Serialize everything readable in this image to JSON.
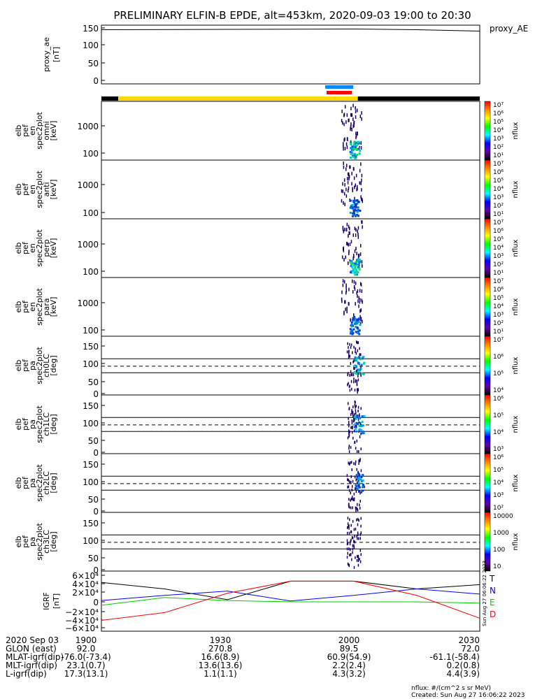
{
  "title": "PRELIMINARY ELFIN-B EPDE, alt=453km, 2020-09-03 19:00 to 20:30",
  "panels": [
    {
      "id": "proxy",
      "ylabel": [
        "proxy_ae",
        "[nT]"
      ],
      "ticks": [
        "150",
        "100",
        "50",
        "0"
      ],
      "legend": "proxy_AE"
    },
    {
      "id": "omni",
      "ylabel": [
        "elb",
        "pef",
        "en",
        "spec2plot",
        "omni",
        "[keV]"
      ],
      "ticks": [
        "1000",
        "100"
      ]
    },
    {
      "id": "anti",
      "ylabel": [
        "elb",
        "pef",
        "en",
        "spec2plot",
        "anti",
        "[keV]"
      ],
      "ticks": [
        "1000",
        "100"
      ]
    },
    {
      "id": "perp",
      "ylabel": [
        "elb",
        "pef",
        "en",
        "spec2plot",
        "perp",
        "[keV]"
      ],
      "ticks": [
        "1000",
        "100"
      ]
    },
    {
      "id": "para",
      "ylabel": [
        "elb",
        "pef",
        "en",
        "spec2plot",
        "para",
        "[keV]"
      ],
      "ticks": [
        "1000",
        "100"
      ]
    },
    {
      "id": "ch0LC",
      "ylabel": [
        "elb",
        "pef",
        "pa",
        "spec2plot",
        "ch0LC",
        "[deg]"
      ],
      "ticks": [
        "150",
        "100",
        "50",
        "0"
      ]
    },
    {
      "id": "ch1LC",
      "ylabel": [
        "elb",
        "pef",
        "pa",
        "spec2plot",
        "ch1LC",
        "[deg]"
      ],
      "ticks": [
        "150",
        "100",
        "50",
        "0"
      ]
    },
    {
      "id": "ch2LC",
      "ylabel": [
        "elb",
        "pef",
        "pa",
        "spec2plot",
        "ch2LC",
        "[deg]"
      ],
      "ticks": [
        "150",
        "100",
        "50",
        "0"
      ]
    },
    {
      "id": "ch3LC",
      "ylabel": [
        "elb",
        "pef",
        "pa",
        "spec2plot",
        "ch3LC",
        "[deg]"
      ],
      "ticks": [
        "150",
        "100",
        "50",
        "0"
      ]
    },
    {
      "id": "igrf",
      "ylabel": [
        "IGRF",
        "[nT]"
      ],
      "ticks": [
        "6×10⁴",
        "4×10⁴",
        "2×10⁴",
        "0",
        "−2×10⁴",
        "−4×10⁴",
        "−6×10⁴"
      ]
    }
  ],
  "colorbars": [
    {
      "panel": "omni",
      "labels": [
        "10⁷",
        "10⁶",
        "10⁵",
        "10⁴",
        "10³",
        "10²",
        "10¹"
      ],
      "unit": "nflux"
    },
    {
      "panel": "anti",
      "labels": [
        "10⁷",
        "10⁶",
        "10⁵",
        "10⁴",
        "10³",
        "10²",
        "10¹"
      ],
      "unit": "nflux"
    },
    {
      "panel": "perp",
      "labels": [
        "10⁷",
        "10⁶",
        "10⁵",
        "10⁴",
        "10³",
        "10²",
        "10¹"
      ],
      "unit": "nflux"
    },
    {
      "panel": "para",
      "labels": [
        "10⁷",
        "10⁶",
        "10⁵",
        "10⁴",
        "10³",
        "10²",
        "10¹"
      ],
      "unit": "nflux"
    },
    {
      "panel": "ch0LC",
      "labels": [
        "10⁷",
        "10⁶",
        "10⁵",
        "10⁴"
      ],
      "unit": "nflux"
    },
    {
      "panel": "ch1LC",
      "labels": [
        "10⁶",
        "10⁵",
        "10⁴",
        "10³"
      ],
      "unit": "nflux"
    },
    {
      "panel": "ch2LC",
      "labels": [
        "10⁶",
        "10⁵",
        "10⁴",
        "10³",
        "10²"
      ],
      "unit": "nflux"
    },
    {
      "panel": "ch3LC",
      "labels": [
        "10000",
        "1000",
        "100",
        "10"
      ],
      "unit": "nflux"
    }
  ],
  "igrf_legend": [
    "T",
    "N",
    "E",
    "D"
  ],
  "colors": {
    "T": "#000000",
    "N": "#0000ff",
    "E": "#00cc00",
    "D": "#ff0000",
    "sunlit": "#ffd800",
    "shadow": "#000000",
    "flag_blue": "#0088ff",
    "flag_red": "#ff0000"
  },
  "stamp_vertical": "Sun Aug 27 06:06:22 2023",
  "bottom_table": {
    "time_header": [
      "1900",
      "1930",
      "2000",
      "2030"
    ],
    "rows": [
      {
        "label": "2020 Sep 03",
        "values": [
          "",
          "",
          "",
          ""
        ]
      },
      {
        "label": "GLON (east)",
        "values": [
          "92.0",
          "270.8",
          "89.5",
          "72.0"
        ]
      },
      {
        "label": "MLAT-igrf(dip)",
        "values": [
          "-76.0(-73.4)",
          "16.6(8.9)",
          "60.9(54.9)",
          "-61.1(-58.4)"
        ]
      },
      {
        "label": "MLT-igrf(dip)",
        "values": [
          "23.1(0.7)",
          "13.6(13.6)",
          "2.2(2.4)",
          "0.2(0.8)"
        ]
      },
      {
        "label": "L-igrf(dip)",
        "values": [
          "17.3(13.1)",
          "1.1(1.1)",
          "4.3(3.2)",
          "4.4(3.9)"
        ]
      }
    ]
  },
  "footer": [
    "nflux: #/(cm^2 s sr MeV)",
    "Created: Sun Aug 27 16:06:22 2023"
  ],
  "chart_data": {
    "type": "line",
    "time_range": [
      "19:00",
      "20:30"
    ],
    "series": [
      {
        "name": "proxy_AE",
        "x": [
          "19:00",
          "19:30",
          "20:00",
          "20:15",
          "20:30"
        ],
        "y": [
          145,
          146,
          147,
          145,
          141
        ]
      },
      {
        "name": "T",
        "x": [
          "19:00",
          "19:15",
          "19:30",
          "19:45",
          "20:00",
          "20:15",
          "20:30"
        ],
        "y": [
          45000,
          30000,
          5000,
          48000,
          48000,
          30000,
          40000
        ]
      },
      {
        "name": "N",
        "x": [
          "19:00",
          "19:15",
          "19:30",
          "19:45",
          "20:00",
          "20:15",
          "20:30"
        ],
        "y": [
          3000,
          15000,
          25000,
          2000,
          15000,
          30000,
          18000
        ]
      },
      {
        "name": "E",
        "x": [
          "19:00",
          "19:15",
          "19:30",
          "19:45",
          "20:00",
          "20:15",
          "20:30"
        ],
        "y": [
          -8000,
          10000,
          3000,
          0,
          0,
          0,
          -3000
        ]
      },
      {
        "name": "D",
        "x": [
          "19:00",
          "19:15",
          "19:30",
          "19:45",
          "20:00",
          "20:15",
          "20:30"
        ],
        "y": [
          -43000,
          -25000,
          20000,
          48000,
          48000,
          15000,
          -38000
        ]
      }
    ],
    "spectrogram": {
      "active_time": [
        "19:57",
        "20:02"
      ],
      "energy_range_keV": [
        60,
        6000
      ],
      "pitch_range_deg": [
        0,
        180
      ],
      "loss_cone_lines_deg": [
        67,
        88,
        112
      ]
    }
  }
}
